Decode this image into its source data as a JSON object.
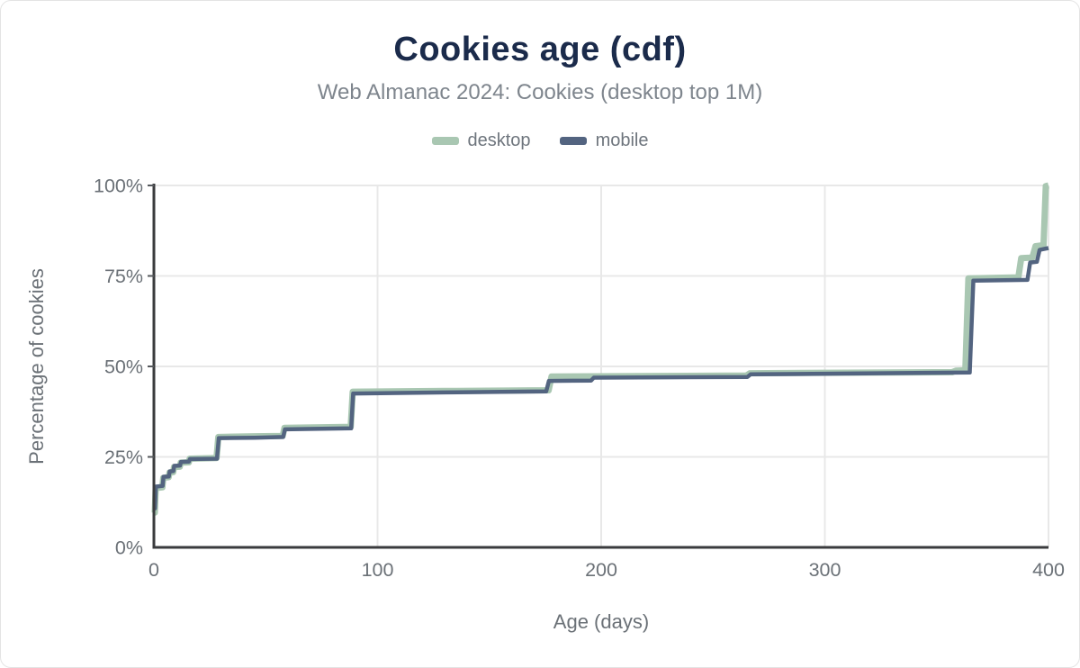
{
  "header": {
    "title": "Cookies age (cdf)",
    "subtitle": "Web Almanac 2024: Cookies (desktop top 1M)"
  },
  "legend": {
    "items": [
      {
        "label": "desktop",
        "color": "#a9c7b2"
      },
      {
        "label": "mobile",
        "color": "#536480"
      }
    ]
  },
  "style": {
    "title_color": "#1b2b4b",
    "subtitle_color": "#7e858d",
    "legend_text_color": "#6e757d",
    "axis_text_color": "#6b7177",
    "grid_color": "#e8e8e8",
    "axis_line_color": "#3a3b3d",
    "tick_color": "#55585c",
    "background": "#ffffff"
  },
  "chart_data": {
    "type": "line",
    "title": "Cookies age (cdf)",
    "subtitle": "Web Almanac 2024: Cookies (desktop top 1M)",
    "xlabel": "Age (days)",
    "ylabel": "Percentage of cookies",
    "xlim": [
      0,
      400
    ],
    "ylim": [
      0,
      100
    ],
    "grid": true,
    "legend_position": "top",
    "x_ticks": [
      {
        "value": 0,
        "label": "0"
      },
      {
        "value": 100,
        "label": "100"
      },
      {
        "value": 200,
        "label": "200"
      },
      {
        "value": 300,
        "label": "300"
      },
      {
        "value": 400,
        "label": "400"
      }
    ],
    "y_ticks": [
      {
        "value": 0,
        "label": "0%"
      },
      {
        "value": 25,
        "label": "25%"
      },
      {
        "value": 50,
        "label": "50%"
      },
      {
        "value": 75,
        "label": "75%"
      },
      {
        "value": 100,
        "label": "100%"
      }
    ],
    "series": [
      {
        "name": "desktop",
        "color": "#a9c7b2",
        "stroke_width": 7,
        "points": [
          [
            0,
            9.6
          ],
          [
            0.4,
            9.6
          ],
          [
            0.8,
            16.4
          ],
          [
            3.8,
            16.6
          ],
          [
            4.2,
            19.2
          ],
          [
            6.6,
            19.4
          ],
          [
            7.0,
            20.7
          ],
          [
            8.6,
            20.8
          ],
          [
            9.0,
            22.2
          ],
          [
            11.6,
            22.3
          ],
          [
            12.0,
            23.4
          ],
          [
            15.6,
            23.5
          ],
          [
            16.0,
            24.5
          ],
          [
            28.0,
            24.7
          ],
          [
            28.8,
            30.5
          ],
          [
            45.0,
            30.7
          ],
          [
            57.6,
            30.8
          ],
          [
            58.4,
            33.0
          ],
          [
            88.0,
            33.3
          ],
          [
            88.9,
            43.0
          ],
          [
            130.0,
            43.2
          ],
          [
            176.5,
            43.4
          ],
          [
            177.8,
            47.2
          ],
          [
            265.0,
            47.5
          ],
          [
            266.5,
            48.1
          ],
          [
            357.0,
            48.4
          ],
          [
            358.5,
            48.8
          ],
          [
            362.8,
            48.9
          ],
          [
            364.2,
            74.3
          ],
          [
            386.5,
            74.6
          ],
          [
            387.8,
            79.9
          ],
          [
            392.8,
            80.1
          ],
          [
            394.2,
            83.2
          ],
          [
            397.8,
            83.5
          ],
          [
            398.8,
            99.8
          ],
          [
            400,
            100
          ]
        ]
      },
      {
        "name": "mobile",
        "color": "#536480",
        "stroke_width": 4.5,
        "points": [
          [
            0,
            10.8
          ],
          [
            0.5,
            10.8
          ],
          [
            0.9,
            16.8
          ],
          [
            3.9,
            17.0
          ],
          [
            4.3,
            19.5
          ],
          [
            6.7,
            19.6
          ],
          [
            7.1,
            21.0
          ],
          [
            8.7,
            21.1
          ],
          [
            9.1,
            22.5
          ],
          [
            11.7,
            22.6
          ],
          [
            12.1,
            23.6
          ],
          [
            15.7,
            23.7
          ],
          [
            16.1,
            24.4
          ],
          [
            28.2,
            24.5
          ],
          [
            29.0,
            30.2
          ],
          [
            45.0,
            30.3
          ],
          [
            57.8,
            30.5
          ],
          [
            58.6,
            32.6
          ],
          [
            88.2,
            32.9
          ],
          [
            89.1,
            42.5
          ],
          [
            130.0,
            42.8
          ],
          [
            175.4,
            43.1
          ],
          [
            176.6,
            46.0
          ],
          [
            195.5,
            46.1
          ],
          [
            196.7,
            46.9
          ],
          [
            265.4,
            47.1
          ],
          [
            266.8,
            47.8
          ],
          [
            364.8,
            48.3
          ],
          [
            366.4,
            73.7
          ],
          [
            390.6,
            73.9
          ],
          [
            391.8,
            78.7
          ],
          [
            394.8,
            78.9
          ],
          [
            396.0,
            82.2
          ],
          [
            400,
            82.7
          ]
        ]
      }
    ]
  }
}
